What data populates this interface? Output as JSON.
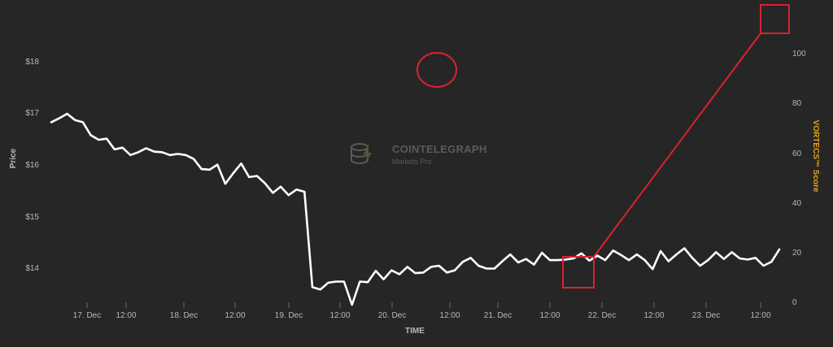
{
  "watermark": {
    "title": "COINTELEGRAPH",
    "subtitle": "Markets Pro"
  },
  "colors": {
    "background": "#262626",
    "price_line": "#ffffff",
    "score_line_neutral": "#8c8c8c",
    "score_line_bullish": "#2e9f48",
    "annotation": "#d9232d",
    "right_axis_title": "#e4a11b"
  },
  "chart_data": {
    "type": "line",
    "title": "",
    "xlabel": "TIME",
    "ylabel": "Price",
    "ylabel_right": "VORTECS™ Score",
    "grid": false,
    "legend": "none",
    "x_range_hours": [
      -20,
      164
    ],
    "ylim": [
      13.35,
      18.6
    ],
    "ylim_right": [
      0,
      122
    ],
    "x_ticks": [
      "17. Dec",
      "12:00",
      "18. Dec",
      "12:00",
      "19. Dec",
      "12:00",
      "20. Dec",
      "12:00",
      "21. Dec",
      "12:00",
      "22. Dec",
      "12:00",
      "23. Dec",
      "12:00"
    ],
    "y_ticks_left": [
      "$14",
      "$15",
      "$16",
      "$17",
      "$18"
    ],
    "y_ticks_right": [
      "0",
      "20",
      "40",
      "60",
      "80",
      "100"
    ],
    "series": [
      {
        "axis": "left",
        "color": "#ffffff",
        "points": [
          [
            -20,
            16.58
          ],
          [
            -18,
            16.65
          ],
          [
            -16,
            16.73
          ],
          [
            -14,
            16.62
          ],
          [
            -12,
            16.58
          ],
          [
            -10,
            16.35
          ],
          [
            -8,
            16.27
          ],
          [
            -6,
            16.29
          ],
          [
            -4,
            16.1
          ],
          [
            -2,
            16.13
          ],
          [
            0,
            16.0
          ],
          [
            2,
            16.05
          ],
          [
            4,
            16.12
          ],
          [
            6,
            16.06
          ],
          [
            8,
            16.05
          ],
          [
            10,
            16.0
          ],
          [
            12,
            16.02
          ],
          [
            14,
            16.0
          ],
          [
            16,
            15.93
          ],
          [
            18,
            15.75
          ],
          [
            20,
            15.74
          ],
          [
            22,
            15.83
          ],
          [
            24,
            15.49
          ],
          [
            26,
            15.68
          ],
          [
            28,
            15.85
          ],
          [
            30,
            15.61
          ],
          [
            32,
            15.63
          ],
          [
            34,
            15.5
          ],
          [
            36,
            15.33
          ],
          [
            38,
            15.44
          ],
          [
            40,
            15.29
          ],
          [
            42,
            15.39
          ],
          [
            44,
            15.35
          ],
          [
            46,
            13.66
          ],
          [
            48,
            13.62
          ],
          [
            50,
            13.74
          ],
          [
            52,
            13.76
          ],
          [
            54,
            13.76
          ],
          [
            56,
            13.35
          ],
          [
            58,
            13.76
          ],
          [
            60,
            13.75
          ],
          [
            62,
            13.95
          ],
          [
            64,
            13.8
          ],
          [
            66,
            13.96
          ],
          [
            68,
            13.89
          ],
          [
            70,
            14.02
          ],
          [
            72,
            13.91
          ],
          [
            74,
            13.92
          ],
          [
            76,
            14.02
          ],
          [
            78,
            14.04
          ],
          [
            80,
            13.92
          ],
          [
            82,
            13.96
          ],
          [
            84,
            14.11
          ],
          [
            86,
            14.18
          ],
          [
            88,
            14.04
          ],
          [
            90,
            13.99
          ],
          [
            92,
            13.99
          ],
          [
            94,
            14.12
          ],
          [
            96,
            14.24
          ],
          [
            98,
            14.1
          ],
          [
            100,
            14.16
          ],
          [
            102,
            14.06
          ],
          [
            104,
            14.27
          ],
          [
            106,
            14.14
          ],
          [
            108,
            14.14
          ],
          [
            110,
            14.15
          ],
          [
            112,
            14.17
          ],
          [
            114,
            14.26
          ],
          [
            116,
            14.13
          ],
          [
            118,
            14.22
          ],
          [
            120,
            14.14
          ],
          [
            122,
            14.31
          ],
          [
            124,
            14.23
          ],
          [
            126,
            14.14
          ],
          [
            128,
            14.24
          ],
          [
            130,
            14.14
          ],
          [
            132,
            13.98
          ],
          [
            134,
            14.3
          ],
          [
            136,
            14.12
          ],
          [
            138,
            14.24
          ],
          [
            140,
            14.35
          ],
          [
            142,
            14.18
          ],
          [
            144,
            14.04
          ],
          [
            146,
            14.14
          ],
          [
            148,
            14.28
          ],
          [
            150,
            14.16
          ],
          [
            152,
            14.28
          ],
          [
            154,
            14.17
          ],
          [
            156,
            14.15
          ],
          [
            158,
            14.18
          ],
          [
            160,
            14.04
          ],
          [
            162,
            14.11
          ],
          [
            164,
            14.33
          ]
        ]
      }
    ]
  }
}
